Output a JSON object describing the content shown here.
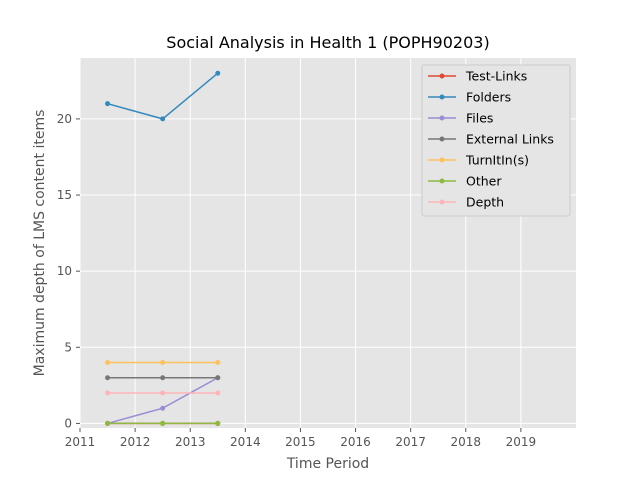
{
  "chart_data": {
    "type": "line",
    "title": "Social Analysis in Health 1 (POPH90203)",
    "xlabel": "Time Period",
    "ylabel": "Maximum depth of LMS content items",
    "xlim": [
      2011,
      2020
    ],
    "ylim": [
      -0.3,
      24.0
    ],
    "xticks": [
      2011,
      2012,
      2013,
      2014,
      2015,
      2016,
      2017,
      2018,
      2019
    ],
    "yticks": [
      0,
      5,
      10,
      15,
      20
    ],
    "x": [
      2011.5,
      2012.5,
      2013.5
    ],
    "series": [
      {
        "name": "Test-Links",
        "color": "#E24A33",
        "values": [
          0,
          0,
          0
        ]
      },
      {
        "name": "Folders",
        "color": "#348ABD",
        "values": [
          21,
          20,
          23
        ]
      },
      {
        "name": "Files",
        "color": "#988ED5",
        "values": [
          0,
          1,
          3
        ]
      },
      {
        "name": "External Links",
        "color": "#777777",
        "values": [
          3,
          3,
          3
        ]
      },
      {
        "name": "TurnItIn(s)",
        "color": "#FBC15E",
        "values": [
          4,
          4,
          4
        ]
      },
      {
        "name": "Other",
        "color": "#8EBA42",
        "values": [
          0,
          0,
          0
        ]
      },
      {
        "name": "Depth",
        "color": "#FFB5B8",
        "values": [
          2,
          2,
          2
        ]
      }
    ],
    "grid": true,
    "legend_position": "top-right"
  }
}
